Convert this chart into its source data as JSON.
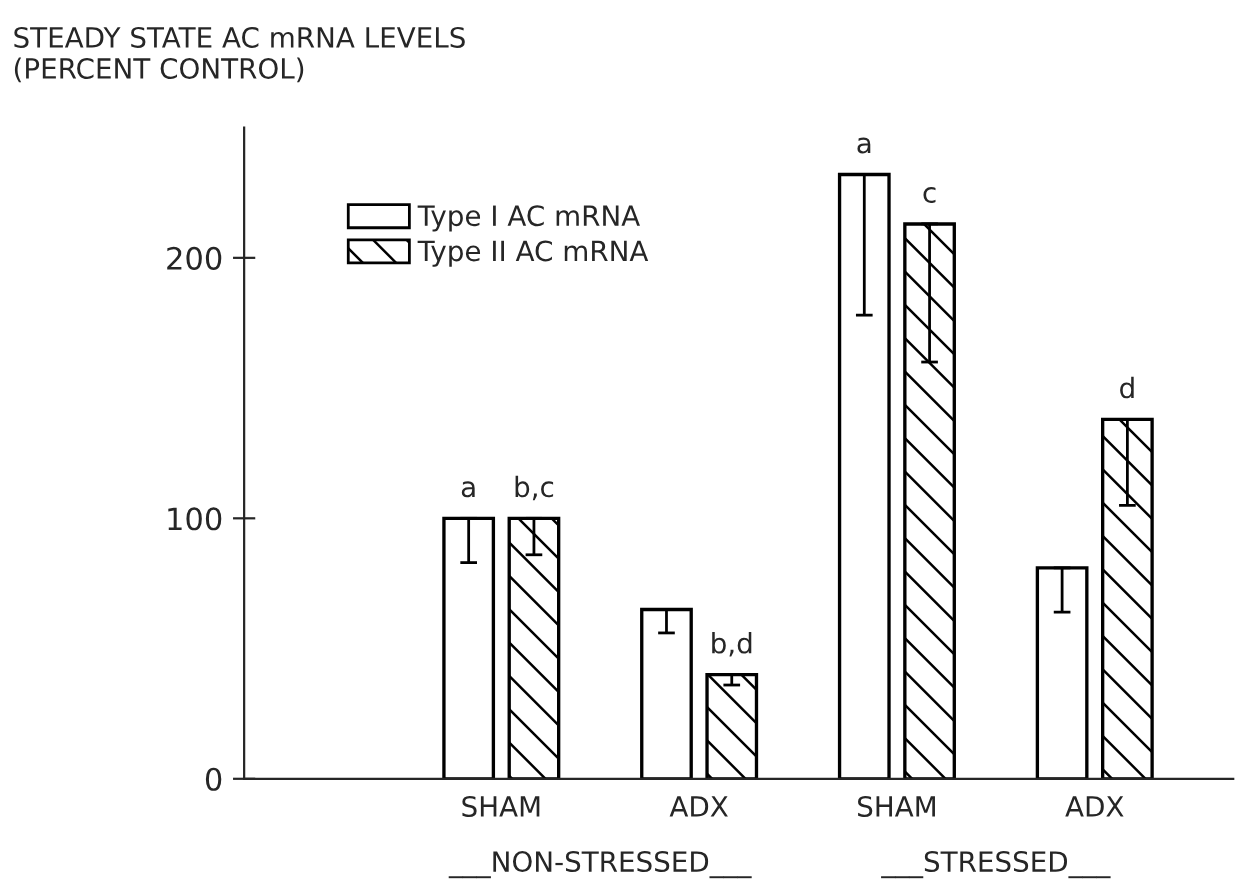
{
  "chart_data": {
    "type": "bar",
    "ylabel": "STEADY STATE AC mRNA LEVELS\n(PERCENT CONTROL)",
    "categories": [
      "SHAM",
      "ADX",
      "SHAM",
      "ADX"
    ],
    "series": [
      {
        "name": "Type I AC mRNA",
        "color": "#ffffff",
        "values": [
          100,
          65,
          232,
          81
        ],
        "errors": [
          [
            83,
            100
          ],
          [
            56,
            65
          ],
          [
            178,
            232
          ],
          [
            64,
            81
          ]
        ],
        "value_labels": [
          "a",
          null,
          "a",
          null
        ]
      },
      {
        "name": "Type II AC mRNA",
        "color": "#000000",
        "values": [
          100,
          40,
          213,
          138
        ],
        "errors": [
          [
            86,
            100
          ],
          [
            36,
            40
          ],
          [
            160,
            213
          ],
          [
            105,
            138
          ]
        ],
        "value_labels": [
          "b,c",
          "b,d",
          "c",
          "d"
        ]
      }
    ],
    "ylim": [
      0,
      250
    ],
    "yticks": [
      0,
      100,
      200
    ],
    "annotations": [
      "___NON-STRESSED___",
      "___STRESSED___"
    ],
    "legend": "top left",
    "grid": false
  }
}
